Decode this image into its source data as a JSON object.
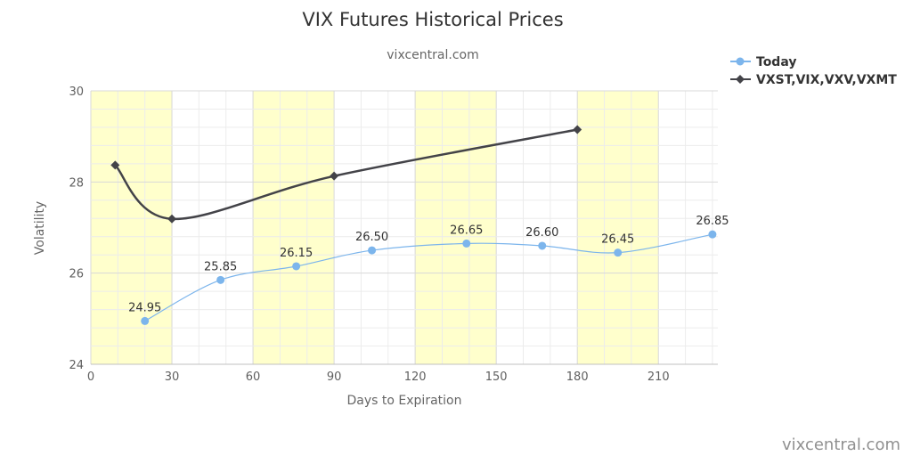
{
  "chart_data": {
    "type": "line",
    "title": "VIX Futures Historical Prices",
    "subtitle": "vixcentral.com",
    "xlabel": "Days to Expiration",
    "ylabel": "Volatility",
    "xlim": [
      0,
      232
    ],
    "ylim": [
      24,
      30
    ],
    "x_ticks": [
      "0",
      "30",
      "60",
      "90",
      "120",
      "150",
      "180",
      "210"
    ],
    "y_ticks": [
      "24",
      "26",
      "28",
      "30"
    ],
    "shaded_bands": [
      [
        0,
        30
      ],
      [
        60,
        90
      ],
      [
        120,
        150
      ],
      [
        180,
        210
      ]
    ],
    "band_color": "#ffffcc",
    "legend_position": "top-right",
    "series": [
      {
        "name": "Today",
        "color": "#7cb5ec",
        "marker": "circle",
        "x": [
          20,
          48,
          76,
          104,
          139,
          167,
          195,
          230
        ],
        "values": [
          24.95,
          25.85,
          26.15,
          26.5,
          26.65,
          26.6,
          26.45,
          26.85
        ],
        "labels": [
          "24.95",
          "25.85",
          "26.15",
          "26.50",
          "26.65",
          "26.60",
          "26.45",
          "26.85"
        ]
      },
      {
        "name": "VXST,VIX,VXV,VXMT",
        "color": "#434348",
        "marker": "diamond",
        "x": [
          9,
          30,
          90,
          180
        ],
        "values": [
          28.37,
          27.19,
          28.13,
          29.15
        ]
      }
    ]
  },
  "credit": "vixcentral.com"
}
